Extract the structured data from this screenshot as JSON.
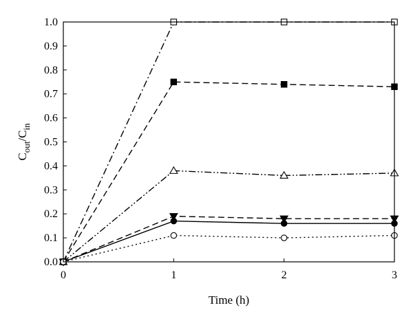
{
  "chart_data": {
    "type": "line",
    "x": [
      0,
      1,
      2,
      3
    ],
    "xlabel": "Time (h)",
    "ylabel": {
      "main": "C",
      "sub1": "out",
      "sep": "/C",
      "sub2": "in"
    },
    "xlim": [
      0,
      3
    ],
    "ylim": [
      0,
      1
    ],
    "x_ticks": [
      "0",
      "1",
      "2",
      "3"
    ],
    "y_ticks": [
      "0.0",
      "0.1",
      "0.2",
      "0.3",
      "0.4",
      "0.5",
      "0.6",
      "0.7",
      "0.8",
      "0.9",
      "1.0"
    ],
    "grid": false,
    "legend": "none",
    "series": [
      {
        "values": [
          0,
          1.0,
          1.0,
          1.0
        ],
        "marker": "open-square",
        "line_style": "dash-dot",
        "color": "#000000"
      },
      {
        "values": [
          0,
          0.75,
          0.74,
          0.73
        ],
        "marker": "filled-square",
        "line_style": "dashed",
        "color": "#000000"
      },
      {
        "values": [
          0,
          0.38,
          0.36,
          0.37
        ],
        "marker": "open-triangle",
        "line_style": "dash-dot-dot",
        "color": "#000000"
      },
      {
        "values": [
          0,
          0.19,
          0.18,
          0.18
        ],
        "marker": "filled-triangle-down",
        "line_style": "dashed",
        "color": "#000000"
      },
      {
        "values": [
          0,
          0.17,
          0.16,
          0.16
        ],
        "marker": "filled-circle",
        "line_style": "solid",
        "color": "#000000"
      },
      {
        "values": [
          0,
          0.11,
          0.1,
          0.11
        ],
        "marker": "open-circle",
        "line_style": "dotted",
        "color": "#000000"
      }
    ]
  }
}
